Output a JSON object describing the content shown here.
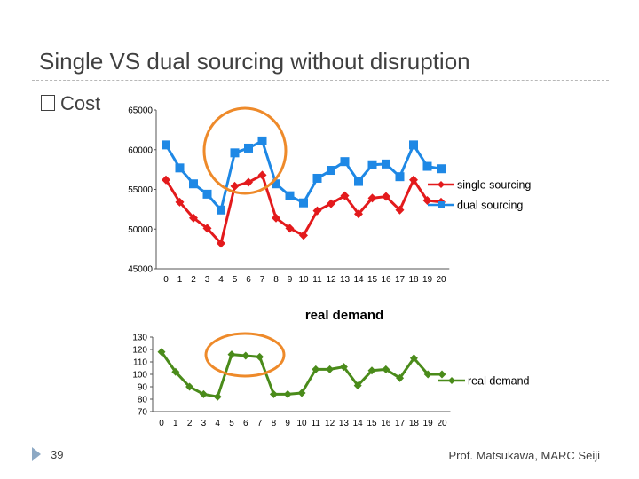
{
  "slide": {
    "title": "Single VS dual sourcing without disruption",
    "bullet": "Cost",
    "page_number": "39",
    "author": "Prof. Matsukawa, MARC Seiji"
  },
  "colors": {
    "single": "#e31a1c",
    "dual": "#1e88e5",
    "demand": "#4a8b1a",
    "highlight": "#ee8a2a"
  },
  "chart_data": [
    {
      "type": "line",
      "title": "",
      "x": [
        0,
        1,
        2,
        3,
        4,
        5,
        6,
        7,
        8,
        9,
        10,
        11,
        12,
        13,
        14,
        15,
        16,
        17,
        18,
        19,
        20
      ],
      "ylim": [
        45000,
        65000
      ],
      "yticks": [
        45000,
        50000,
        55000,
        60000,
        65000
      ],
      "legend": "right",
      "series": [
        {
          "name": "single sourcing",
          "marker": "diamond",
          "values": [
            56200,
            53400,
            51400,
            50100,
            48200,
            55400,
            55900,
            56800,
            51400,
            50100,
            49200,
            52300,
            53200,
            54200,
            51900,
            53900,
            54100,
            52400,
            56200,
            53600,
            53400
          ]
        },
        {
          "name": "dual sourcing",
          "marker": "square",
          "values": [
            60600,
            57700,
            55700,
            54400,
            52400,
            59600,
            60200,
            61100,
            55700,
            54200,
            53300,
            56400,
            57400,
            58500,
            56000,
            58100,
            58200,
            56600,
            60600,
            57900,
            57600
          ]
        }
      ]
    },
    {
      "type": "line",
      "title": "real demand",
      "x": [
        0,
        1,
        2,
        3,
        4,
        5,
        6,
        7,
        8,
        9,
        10,
        11,
        12,
        13,
        14,
        15,
        16,
        17,
        18,
        19,
        20
      ],
      "ylim": [
        70,
        130
      ],
      "yticks": [
        70,
        80,
        90,
        100,
        110,
        120,
        130
      ],
      "legend": "right",
      "series": [
        {
          "name": "real demand",
          "marker": "diamond",
          "values": [
            118,
            102,
            90,
            84,
            82,
            116,
            115,
            114,
            84,
            84,
            85,
            104,
            104,
            106,
            91,
            103,
            104,
            97,
            113,
            100,
            100
          ]
        }
      ]
    }
  ]
}
